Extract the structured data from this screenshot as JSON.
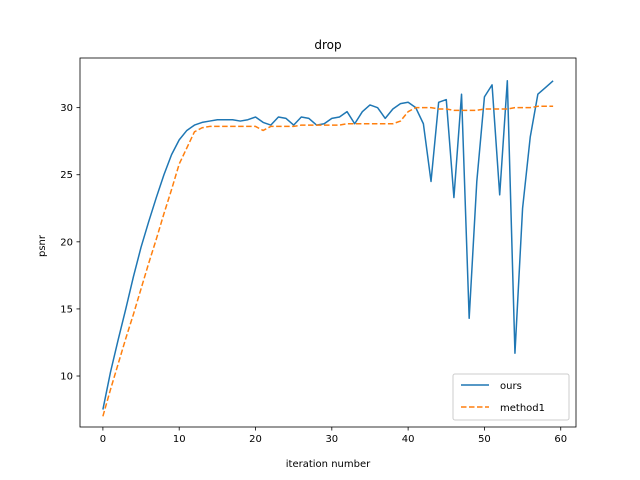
{
  "chart_data": {
    "type": "line",
    "title": "drop",
    "xlabel": "iteration number",
    "ylabel": "psnr",
    "xlim": [
      -3,
      62
    ],
    "ylim": [
      6.2,
      33.7
    ],
    "xticks": [
      0,
      10,
      20,
      30,
      40,
      50,
      60
    ],
    "yticks": [
      10,
      15,
      20,
      25,
      30
    ],
    "grid": false,
    "legend_position": "lower-right",
    "colors": {
      "ours": "#1f77b4",
      "method1": "#ff7f0e"
    },
    "series": [
      {
        "name": "ours",
        "style": "solid",
        "x": [
          0,
          1,
          2,
          3,
          4,
          5,
          6,
          7,
          8,
          9,
          10,
          11,
          12,
          13,
          14,
          15,
          16,
          17,
          18,
          19,
          20,
          21,
          22,
          23,
          24,
          25,
          26,
          27,
          28,
          29,
          30,
          31,
          32,
          33,
          34,
          35,
          36,
          37,
          38,
          39,
          40,
          41,
          42,
          43,
          44,
          45,
          46,
          47,
          48,
          49,
          50,
          51,
          52,
          53,
          54,
          55,
          56,
          57,
          58,
          59
        ],
        "values": [
          7.5,
          10.3,
          12.7,
          15.0,
          17.4,
          19.6,
          21.5,
          23.3,
          25.0,
          26.5,
          27.6,
          28.3,
          28.7,
          28.9,
          29.0,
          29.1,
          29.1,
          29.1,
          29.0,
          29.1,
          29.3,
          28.9,
          28.7,
          29.3,
          29.2,
          28.7,
          29.3,
          29.2,
          28.7,
          28.8,
          29.2,
          29.3,
          29.7,
          28.8,
          29.7,
          30.2,
          30.0,
          29.2,
          29.9,
          30.3,
          30.4,
          30.0,
          28.8,
          24.5,
          30.4,
          30.6,
          23.3,
          31.0,
          14.3,
          24.5,
          30.8,
          31.7,
          23.5,
          32.0,
          11.7,
          22.5,
          27.8,
          31.0,
          31.5,
          32.0
        ]
      },
      {
        "name": "method1",
        "style": "dashed",
        "x": [
          0,
          1,
          2,
          3,
          4,
          5,
          6,
          7,
          8,
          9,
          10,
          11,
          12,
          13,
          14,
          15,
          16,
          17,
          18,
          19,
          20,
          21,
          22,
          23,
          24,
          25,
          26,
          27,
          28,
          29,
          30,
          31,
          32,
          33,
          34,
          35,
          36,
          37,
          38,
          39,
          40,
          41,
          42,
          43,
          44,
          45,
          46,
          47,
          48,
          49,
          50,
          51,
          52,
          53,
          54,
          55,
          56,
          57,
          58,
          59
        ],
        "values": [
          7.0,
          9.0,
          10.9,
          12.8,
          14.6,
          16.5,
          18.4,
          20.2,
          22.1,
          23.9,
          25.8,
          27.0,
          28.2,
          28.5,
          28.6,
          28.6,
          28.6,
          28.6,
          28.6,
          28.6,
          28.6,
          28.3,
          28.6,
          28.6,
          28.6,
          28.6,
          28.7,
          28.7,
          28.7,
          28.7,
          28.7,
          28.7,
          28.8,
          28.8,
          28.8,
          28.8,
          28.8,
          28.8,
          28.8,
          29.0,
          29.7,
          30.0,
          30.0,
          30.0,
          29.9,
          29.9,
          29.8,
          29.8,
          29.8,
          29.8,
          29.9,
          29.9,
          29.9,
          29.9,
          30.0,
          30.0,
          30.0,
          30.1,
          30.1,
          30.1
        ]
      }
    ]
  }
}
